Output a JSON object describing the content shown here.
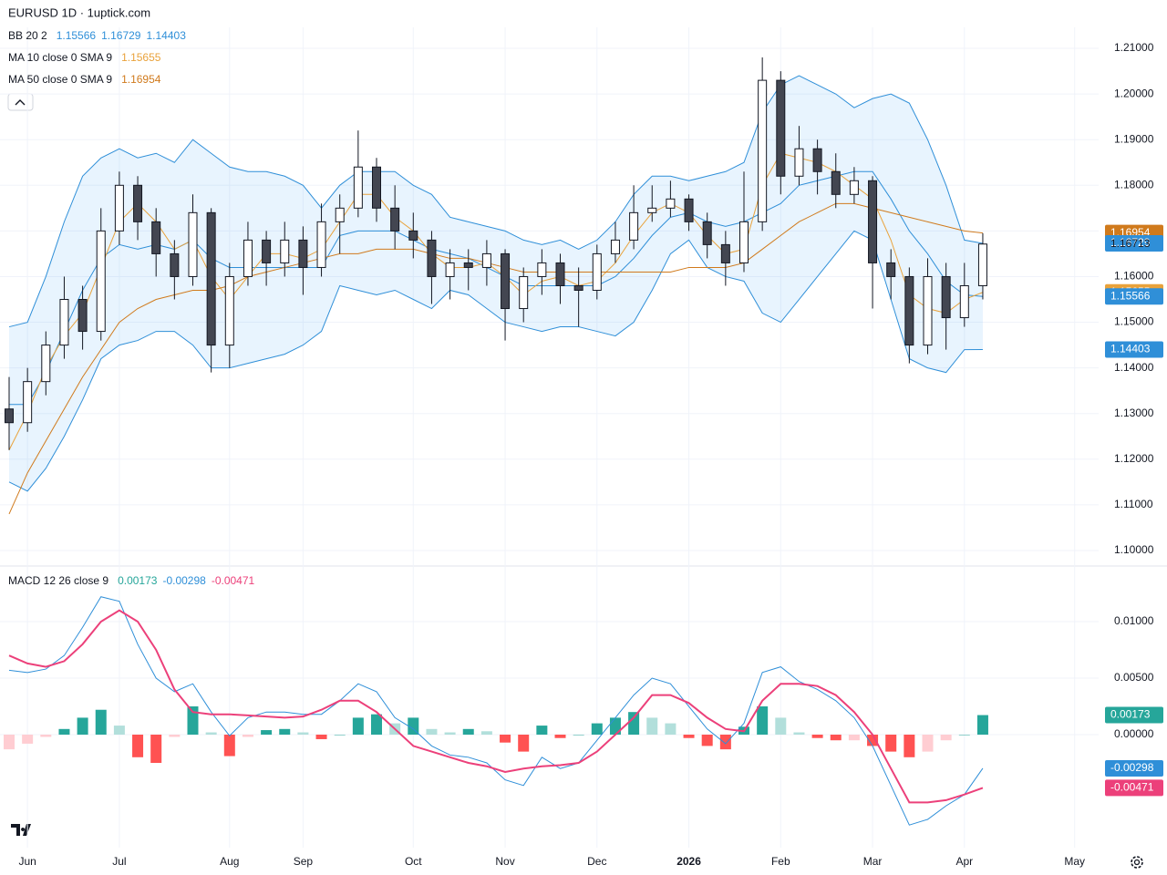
{
  "chart_data": [
    {
      "type": "candlestick",
      "title": "EURUSD 1D · 1uptick.com",
      "categories": [
        null,
        "Jun",
        null,
        null,
        null,
        null,
        "Jul",
        null,
        null,
        null,
        null,
        null,
        "Aug",
        null,
        null,
        null,
        "Sep",
        null,
        null,
        null,
        null,
        null,
        "Oct",
        null,
        null,
        null,
        null,
        "Nov",
        null,
        null,
        null,
        null,
        "Dec",
        null,
        null,
        null,
        null,
        "2026",
        null,
        null,
        null,
        null,
        "Feb",
        null,
        null,
        null,
        null,
        "Mar",
        null,
        null,
        null,
        null,
        "Apr",
        null,
        null,
        null,
        null,
        null,
        "May"
      ],
      "ohlc": [
        [
          1.131,
          1.138,
          1.122,
          1.128
        ],
        [
          1.128,
          1.14,
          1.126,
          1.137
        ],
        [
          1.137,
          1.148,
          1.134,
          1.145
        ],
        [
          1.145,
          1.16,
          1.142,
          1.155
        ],
        [
          1.155,
          1.158,
          1.144,
          1.148
        ],
        [
          1.148,
          1.175,
          1.146,
          1.17
        ],
        [
          1.17,
          1.183,
          1.167,
          1.18
        ],
        [
          1.18,
          1.182,
          1.168,
          1.172
        ],
        [
          1.172,
          1.175,
          1.16,
          1.165
        ],
        [
          1.165,
          1.168,
          1.155,
          1.16
        ],
        [
          1.16,
          1.178,
          1.158,
          1.174
        ],
        [
          1.174,
          1.175,
          1.139,
          1.145
        ],
        [
          1.145,
          1.163,
          1.14,
          1.16
        ],
        [
          1.16,
          1.172,
          1.158,
          1.168
        ],
        [
          1.168,
          1.17,
          1.158,
          1.163
        ],
        [
          1.163,
          1.172,
          1.16,
          1.168
        ],
        [
          1.168,
          1.171,
          1.156,
          1.162
        ],
        [
          1.162,
          1.176,
          1.16,
          1.172
        ],
        [
          1.172,
          1.178,
          1.165,
          1.175
        ],
        [
          1.175,
          1.192,
          1.173,
          1.184
        ],
        [
          1.184,
          1.186,
          1.172,
          1.175
        ],
        [
          1.175,
          1.18,
          1.166,
          1.17
        ],
        [
          1.17,
          1.174,
          1.164,
          1.168
        ],
        [
          1.168,
          1.17,
          1.154,
          1.16
        ],
        [
          1.16,
          1.166,
          1.155,
          1.163
        ],
        [
          1.163,
          1.166,
          1.157,
          1.162
        ],
        [
          1.162,
          1.168,
          1.158,
          1.165
        ],
        [
          1.165,
          1.166,
          1.146,
          1.153
        ],
        [
          1.153,
          1.162,
          1.15,
          1.16
        ],
        [
          1.16,
          1.166,
          1.156,
          1.163
        ],
        [
          1.163,
          1.165,
          1.154,
          1.158
        ],
        [
          1.158,
          1.162,
          1.149,
          1.157
        ],
        [
          1.157,
          1.167,
          1.155,
          1.165
        ],
        [
          1.165,
          1.172,
          1.163,
          1.168
        ],
        [
          1.168,
          1.18,
          1.166,
          1.174
        ],
        [
          1.174,
          1.18,
          1.172,
          1.175
        ],
        [
          1.175,
          1.181,
          1.173,
          1.177
        ],
        [
          1.177,
          1.178,
          1.17,
          1.172
        ],
        [
          1.172,
          1.174,
          1.164,
          1.167
        ],
        [
          1.167,
          1.17,
          1.158,
          1.163
        ],
        [
          1.163,
          1.183,
          1.161,
          1.172
        ],
        [
          1.172,
          1.208,
          1.17,
          1.203
        ],
        [
          1.203,
          1.205,
          1.178,
          1.182
        ],
        [
          1.182,
          1.193,
          1.18,
          1.188
        ],
        [
          1.188,
          1.19,
          1.178,
          1.183
        ],
        [
          1.183,
          1.187,
          1.175,
          1.178
        ],
        [
          1.178,
          1.184,
          1.176,
          1.181
        ],
        [
          1.181,
          1.182,
          1.153,
          1.163
        ],
        [
          1.163,
          1.166,
          1.155,
          1.16
        ],
        [
          1.16,
          1.162,
          1.141,
          1.145
        ],
        [
          1.145,
          1.164,
          1.143,
          1.16
        ],
        [
          1.16,
          1.163,
          1.144,
          1.151
        ],
        [
          1.151,
          1.163,
          1.149,
          1.158
        ],
        [
          1.158,
          1.1695,
          1.155,
          1.16713
        ],
        null,
        null,
        null,
        null,
        null
      ],
      "up_color": "#ffffff",
      "down_color": "#434651",
      "wick_color": "#131722",
      "bb": {
        "name": "BB 20 2",
        "color": "#2f8fd8",
        "fill": "rgba(33,150,243,0.10)",
        "basis": [
          1.132,
          1.132,
          1.139,
          1.148,
          1.157,
          1.164,
          1.167,
          1.166,
          1.167,
          1.166,
          1.168,
          1.164,
          1.162,
          1.162,
          1.162,
          1.162,
          1.162,
          1.162,
          1.169,
          1.17,
          1.17,
          1.17,
          1.168,
          1.166,
          1.165,
          1.164,
          1.162,
          1.16,
          1.158,
          1.158,
          1.158,
          1.158,
          1.158,
          1.16,
          1.164,
          1.169,
          1.173,
          1.174,
          1.172,
          1.171,
          1.172,
          1.174,
          1.176,
          1.18,
          1.181,
          1.182,
          1.183,
          1.183,
          1.177,
          1.17,
          1.165,
          1.159,
          1.156,
          1.15566,
          null,
          null,
          null,
          null,
          null
        ],
        "upper": [
          1.149,
          1.15,
          1.16,
          1.172,
          1.182,
          1.186,
          1.188,
          1.186,
          1.187,
          1.185,
          1.19,
          1.187,
          1.184,
          1.183,
          1.183,
          1.182,
          1.18,
          1.175,
          1.18,
          1.183,
          1.183,
          1.183,
          1.18,
          1.178,
          1.173,
          1.172,
          1.171,
          1.17,
          1.168,
          1.167,
          1.168,
          1.166,
          1.168,
          1.172,
          1.178,
          1.182,
          1.182,
          1.181,
          1.182,
          1.183,
          1.185,
          1.196,
          1.202,
          1.204,
          1.202,
          1.2,
          1.197,
          1.199,
          1.2,
          1.198,
          1.19,
          1.18,
          1.168,
          1.16729,
          null,
          null,
          null,
          null,
          null
        ],
        "lower": [
          1.115,
          1.113,
          1.118,
          1.125,
          1.133,
          1.142,
          1.145,
          1.146,
          1.148,
          1.148,
          1.145,
          1.14,
          1.14,
          1.141,
          1.142,
          1.143,
          1.145,
          1.148,
          1.158,
          1.157,
          1.156,
          1.157,
          1.155,
          1.153,
          1.157,
          1.156,
          1.153,
          1.15,
          1.149,
          1.148,
          1.149,
          1.149,
          1.148,
          1.147,
          1.15,
          1.157,
          1.165,
          1.168,
          1.162,
          1.16,
          1.159,
          1.152,
          1.15,
          1.155,
          1.16,
          1.165,
          1.17,
          1.168,
          1.155,
          1.142,
          1.14,
          1.139,
          1.144,
          1.14403,
          null,
          null,
          null,
          null,
          null
        ]
      },
      "ma": [
        {
          "name": "MA 10 close 0 SMA 9",
          "color": "#e9a23b",
          "values": [
            1.122,
            1.13,
            1.14,
            1.147,
            1.152,
            1.162,
            1.172,
            1.176,
            1.172,
            1.166,
            1.168,
            1.16,
            1.155,
            1.16,
            1.165,
            1.165,
            1.164,
            1.166,
            1.172,
            1.178,
            1.178,
            1.173,
            1.17,
            1.165,
            1.162,
            1.162,
            1.163,
            1.16,
            1.156,
            1.159,
            1.16,
            1.158,
            1.159,
            1.163,
            1.169,
            1.174,
            1.176,
            1.174,
            1.169,
            1.165,
            1.166,
            1.18,
            1.187,
            1.186,
            1.185,
            1.183,
            1.18,
            1.177,
            1.168,
            1.156,
            1.153,
            1.152,
            1.155,
            1.15655,
            null,
            null,
            null,
            null,
            null
          ]
        },
        {
          "name": "MA 50 close 0 SMA 9",
          "color": "#d07a1c",
          "values": [
            1.108,
            1.117,
            1.124,
            1.131,
            1.138,
            1.144,
            1.15,
            1.153,
            1.155,
            1.156,
            1.157,
            1.157,
            1.158,
            1.16,
            1.161,
            1.162,
            1.163,
            1.164,
            1.165,
            1.165,
            1.166,
            1.166,
            1.166,
            1.165,
            1.164,
            1.164,
            1.163,
            1.162,
            1.161,
            1.161,
            1.161,
            1.161,
            1.161,
            1.161,
            1.161,
            1.161,
            1.161,
            1.162,
            1.162,
            1.162,
            1.163,
            1.166,
            1.169,
            1.172,
            1.174,
            1.176,
            1.176,
            1.175,
            1.174,
            1.173,
            1.172,
            1.171,
            1.17,
            1.16954,
            null,
            null,
            null,
            null,
            null
          ]
        }
      ],
      "ylim": [
        1.0968,
        1.2146
      ],
      "yticks": [
        {
          "value": 1.21,
          "label": "1.21000"
        },
        {
          "value": 1.2,
          "label": "1.20000"
        },
        {
          "value": 1.19,
          "label": "1.19000"
        },
        {
          "value": 1.18,
          "label": "1.18000"
        },
        {
          "value": 1.17,
          "label": "1.17000"
        },
        {
          "value": 1.16,
          "label": "1.16000"
        },
        {
          "value": 1.15,
          "label": "1.15000"
        },
        {
          "value": 1.14,
          "label": "1.14000"
        },
        {
          "value": 1.13,
          "label": "1.13000"
        },
        {
          "value": 1.12,
          "label": "1.12000"
        },
        {
          "value": 1.11,
          "label": "1.11000"
        },
        {
          "value": 1.1,
          "label": "1.10000"
        }
      ],
      "grid": true
    },
    {
      "type": "macd",
      "name": "MACD 12 26 close 9",
      "histogram": [
        -0.0013,
        -0.0008,
        -0.0002,
        0.0005,
        0.0015,
        0.0022,
        0.0008,
        -0.002,
        -0.0025,
        -0.0002,
        0.0025,
        0.0002,
        -0.0019,
        -0.0002,
        0.0004,
        0.0005,
        0.0002,
        -0.0004,
        0.0,
        0.0015,
        0.0018,
        0.001,
        0.0015,
        0.0005,
        0.0002,
        0.0005,
        0.0003,
        -0.0007,
        -0.0015,
        0.0008,
        -0.0003,
        0.0,
        0.001,
        0.0015,
        0.002,
        0.0015,
        0.001,
        -0.0003,
        -0.001,
        -0.0013,
        0.0007,
        0.0025,
        0.0015,
        0.0002,
        -0.0003,
        -0.0005,
        -0.0005,
        -0.001,
        -0.0015,
        -0.002,
        -0.0015,
        -0.0005,
        0.0,
        0.00173,
        null,
        null,
        null,
        null,
        null
      ],
      "histogram_colors": [
        "#26a69a",
        "#b2dfdb",
        "#ff5252",
        "#ffcdd2"
      ],
      "macd": {
        "color": "#2f8fd8",
        "values": [
          0.0057,
          0.0055,
          0.0058,
          0.007,
          0.0095,
          0.0122,
          0.0118,
          0.008,
          0.005,
          0.0038,
          0.0045,
          0.002,
          -0.0001,
          0.0015,
          0.002,
          0.002,
          0.0018,
          0.0018,
          0.003,
          0.0045,
          0.0038,
          0.0015,
          0.0005,
          -0.001,
          -0.0018,
          -0.002,
          -0.0025,
          -0.004,
          -0.0045,
          -0.002,
          -0.003,
          -0.0025,
          -0.0005,
          0.0015,
          0.0035,
          0.005,
          0.0045,
          0.0025,
          0.0005,
          -0.0008,
          0.001,
          0.0055,
          0.006,
          0.0047,
          0.004,
          0.003,
          0.0015,
          -0.001,
          -0.0045,
          -0.008,
          -0.0075,
          -0.0063,
          -0.0053,
          -0.00298,
          null,
          null,
          null,
          null,
          null
        ]
      },
      "signal": {
        "color": "#ec407a",
        "values": [
          0.007,
          0.0063,
          0.006,
          0.0065,
          0.008,
          0.01,
          0.011,
          0.01,
          0.0075,
          0.004,
          0.002,
          0.0018,
          0.0018,
          0.0017,
          0.0016,
          0.0015,
          0.0016,
          0.0022,
          0.003,
          0.003,
          0.002,
          0.0005,
          -0.001,
          -0.0015,
          -0.002,
          -0.0025,
          -0.0028,
          -0.0033,
          -0.003,
          -0.0028,
          -0.0027,
          -0.0025,
          -0.0015,
          0.0,
          0.0015,
          0.0035,
          0.0035,
          0.0028,
          0.0015,
          0.0005,
          0.0003,
          0.003,
          0.0045,
          0.0045,
          0.0043,
          0.0035,
          0.002,
          0.0,
          -0.003,
          -0.006,
          -0.006,
          -0.0058,
          -0.0053,
          -0.00471,
          null,
          null,
          null,
          null,
          null
        ]
      },
      "ylim": [
        -0.01,
        0.01484
      ],
      "yticks": [
        {
          "value": 0.01,
          "label": "0.01000"
        },
        {
          "value": 0.005,
          "label": "0.00500"
        },
        {
          "value": 0,
          "label": "0.00000"
        }
      ],
      "grid": true
    }
  ]
}
